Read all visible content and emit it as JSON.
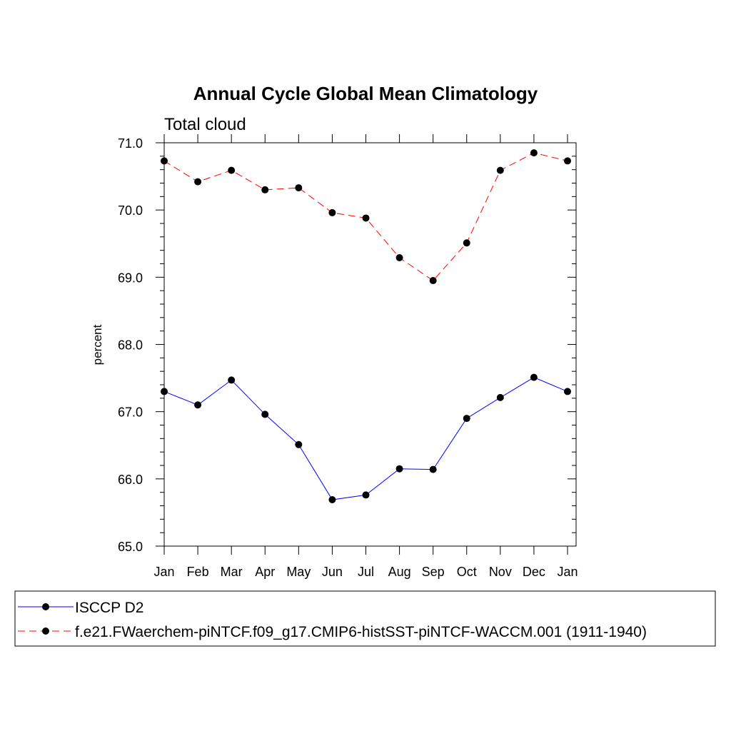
{
  "chart_data": {
    "type": "line",
    "title": "Annual Cycle Global Mean Climatology",
    "subtitle": "Total cloud",
    "xlabel": "",
    "ylabel": "percent",
    "categories": [
      "Jan",
      "Feb",
      "Mar",
      "Apr",
      "May",
      "Jun",
      "Jul",
      "Aug",
      "Sep",
      "Oct",
      "Nov",
      "Dec",
      "Jan"
    ],
    "ylim": [
      65.0,
      71.0
    ],
    "yticks": [
      65.0,
      66.0,
      67.0,
      68.0,
      69.0,
      70.0,
      71.0
    ],
    "ytick_labels": [
      "65.0",
      "66.0",
      "67.0",
      "68.0",
      "69.0",
      "70.0",
      "71.0"
    ],
    "series": [
      {
        "name": "ISCCP D2",
        "color": "#0000ff",
        "dash": "solid",
        "values": [
          67.3,
          67.1,
          67.47,
          66.96,
          66.51,
          65.69,
          65.76,
          66.15,
          66.14,
          66.9,
          67.21,
          67.51,
          67.3
        ]
      },
      {
        "name": "f.e21.FWaerchem-piNTCF.f09_g17.CMIP6-histSST-piNTCF-WACCM.001 (1911-1940)",
        "color": "#ff0000",
        "dash": "dashed",
        "values": [
          70.73,
          70.42,
          70.59,
          70.3,
          70.33,
          69.96,
          69.88,
          69.29,
          68.95,
          69.51,
          70.59,
          70.85,
          70.73
        ]
      }
    ],
    "legend": {
      "position": "bottom"
    }
  }
}
